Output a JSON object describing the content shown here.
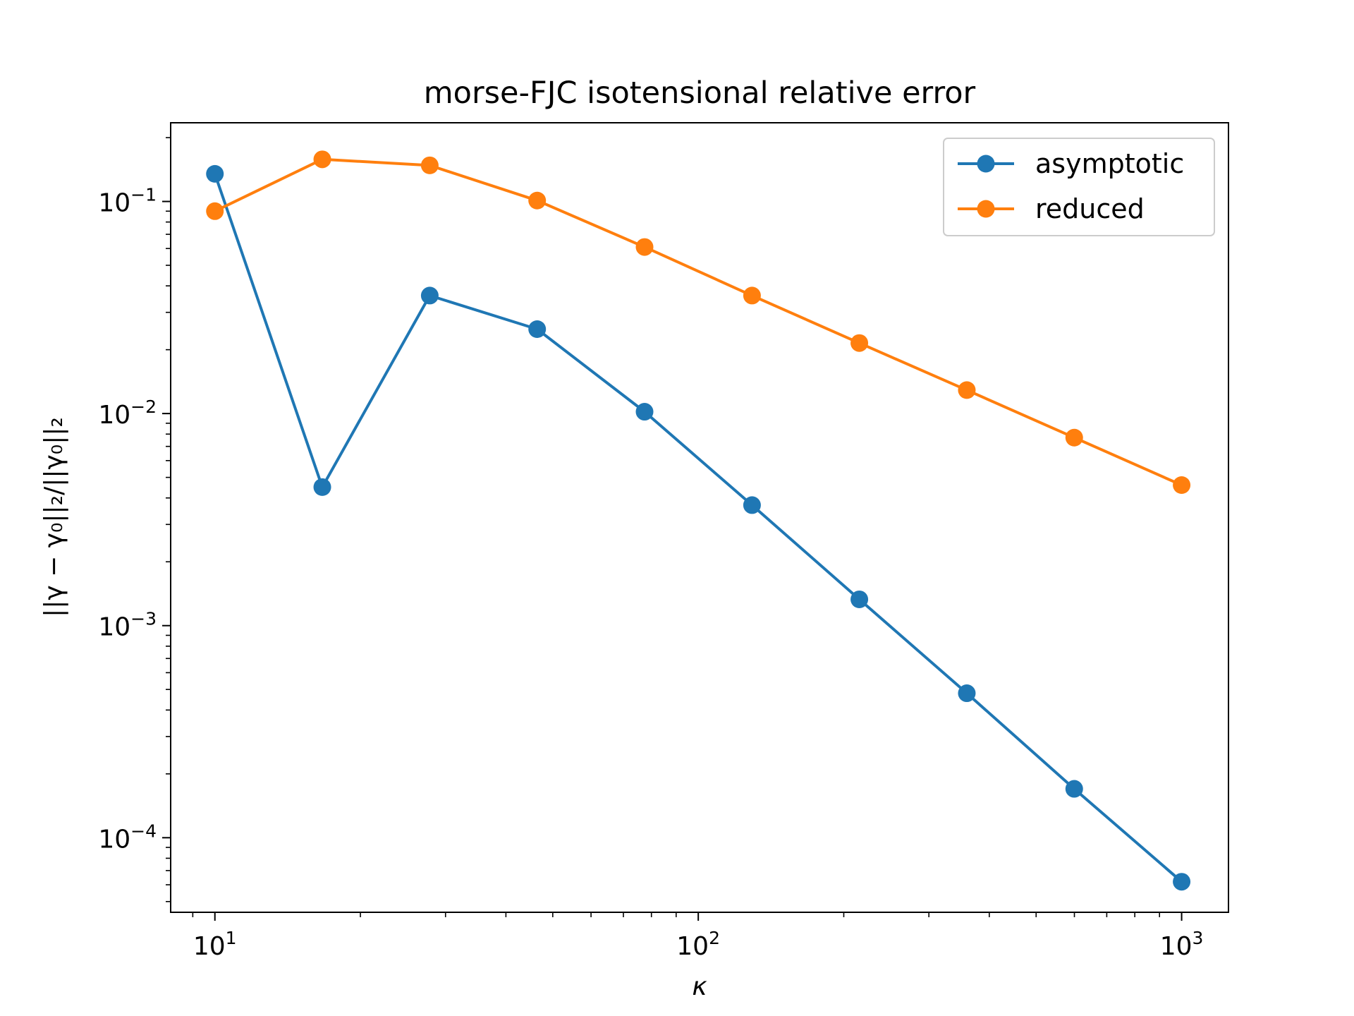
{
  "chart_data": {
    "type": "line",
    "title": "morse-FJC isotensional relative error",
    "xlabel": "κ",
    "ylabel": "||γ − γ₀||₂/||γ₀||₂",
    "xscale": "log",
    "yscale": "log",
    "xlim": [
      8.1,
      1250
    ],
    "ylim": [
      4.45e-05,
      0.235
    ],
    "grid": false,
    "legend_position": "top-right",
    "x_ticks": [
      {
        "base": "10",
        "exp": "1",
        "value": 10
      },
      {
        "base": "10",
        "exp": "2",
        "value": 100
      },
      {
        "base": "10",
        "exp": "3",
        "value": 1000
      }
    ],
    "y_ticks": [
      {
        "base": "10",
        "exp": "−1",
        "value": 0.1
      },
      {
        "base": "10",
        "exp": "−2",
        "value": 0.01
      },
      {
        "base": "10",
        "exp": "−3",
        "value": 0.001
      },
      {
        "base": "10",
        "exp": "−4",
        "value": 0.0001
      }
    ],
    "x": [
      10,
      16.68,
      27.83,
      46.42,
      77.43,
      129.2,
      215.4,
      359.4,
      599.5,
      1000
    ],
    "series": [
      {
        "name": "asymptotic",
        "color": "#1f77b4",
        "marker": "circle",
        "values": [
          0.135,
          0.0045,
          0.036,
          0.025,
          0.0102,
          0.0037,
          0.00133,
          0.00048,
          0.00017,
          6.2e-05
        ]
      },
      {
        "name": "reduced",
        "color": "#ff7f0e",
        "marker": "circle",
        "values": [
          0.09,
          0.158,
          0.148,
          0.101,
          0.061,
          0.036,
          0.0215,
          0.0129,
          0.0077,
          0.0046
        ]
      }
    ]
  }
}
